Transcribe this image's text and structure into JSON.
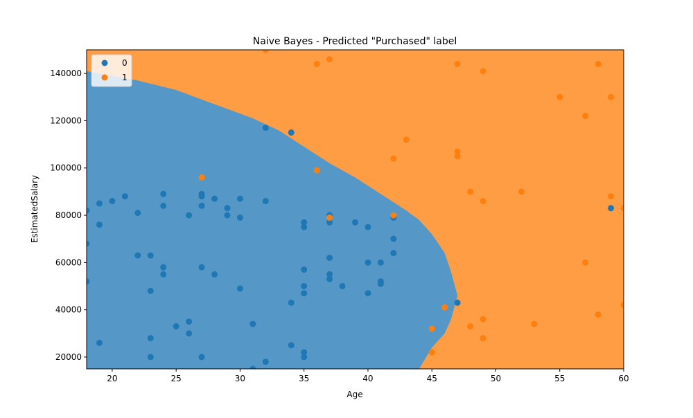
{
  "chart_data": {
    "type": "scatter",
    "title": "Naive Bayes - Predicted \"Purchased\" label",
    "xlabel": "Age",
    "ylabel": "EstimatedSalary",
    "xlim": [
      18,
      60
    ],
    "ylim": [
      15000,
      150000
    ],
    "xticks": [
      20,
      25,
      30,
      35,
      40,
      45,
      50,
      55,
      60
    ],
    "yticks": [
      20000,
      40000,
      60000,
      80000,
      100000,
      120000,
      140000
    ],
    "xtick_labels": [
      "20",
      "25",
      "30",
      "35",
      "40",
      "45",
      "50",
      "55",
      "60"
    ],
    "ytick_labels": [
      "20000",
      "40000",
      "60000",
      "80000",
      "100000",
      "120000",
      "140000"
    ],
    "grid": false,
    "legend": {
      "placement": "top-left",
      "entries": [
        "0",
        "1"
      ]
    },
    "colors": {
      "class_0": "#1f77b4",
      "class_1": "#ff7f0e",
      "region_0": "#5598c8",
      "region_1": "#ff9d45"
    },
    "decision_boundary": {
      "description_points_age_salary": [
        [
          18,
          141000
        ],
        [
          22,
          137000
        ],
        [
          25,
          133000
        ],
        [
          27,
          129000
        ],
        [
          29,
          125000
        ],
        [
          31,
          121000
        ],
        [
          33,
          116000
        ],
        [
          35,
          109000
        ],
        [
          37,
          102000
        ],
        [
          39,
          96000
        ],
        [
          41,
          89000
        ],
        [
          43,
          82000
        ],
        [
          44,
          78000
        ],
        [
          45,
          72000
        ],
        [
          46,
          64000
        ],
        [
          46.5,
          56000
        ],
        [
          47,
          46000
        ],
        [
          46.5,
          36000
        ],
        [
          46,
          30000
        ],
        [
          45,
          24000
        ],
        [
          44,
          15000
        ]
      ]
    },
    "series": [
      {
        "name": "0",
        "points": [
          [
            18,
            82000
          ],
          [
            18,
            68000
          ],
          [
            18,
            52000
          ],
          [
            19,
            85000
          ],
          [
            19,
            76000
          ],
          [
            19,
            26000
          ],
          [
            20,
            86000
          ],
          [
            21,
            88000
          ],
          [
            22,
            81000
          ],
          [
            22,
            63000
          ],
          [
            23,
            63000
          ],
          [
            23,
            48000
          ],
          [
            23,
            28000
          ],
          [
            23,
            20000
          ],
          [
            24,
            89000
          ],
          [
            24,
            84000
          ],
          [
            24,
            58000
          ],
          [
            24,
            55000
          ],
          [
            25,
            33000
          ],
          [
            26,
            80000
          ],
          [
            26,
            35000
          ],
          [
            26,
            30000
          ],
          [
            27,
            89000
          ],
          [
            27,
            88000
          ],
          [
            27,
            84000
          ],
          [
            27,
            58000
          ],
          [
            27,
            20000
          ],
          [
            28,
            87000
          ],
          [
            28,
            55000
          ],
          [
            29,
            83000
          ],
          [
            29,
            80000
          ],
          [
            30,
            87000
          ],
          [
            30,
            79000
          ],
          [
            30,
            49000
          ],
          [
            31,
            34000
          ],
          [
            31,
            15000
          ],
          [
            32,
            117000
          ],
          [
            32,
            86000
          ],
          [
            32,
            18000
          ],
          [
            34,
            115000
          ],
          [
            34,
            43000
          ],
          [
            34,
            25000
          ],
          [
            35,
            77000
          ],
          [
            35,
            75000
          ],
          [
            35,
            57000
          ],
          [
            35,
            50000
          ],
          [
            35,
            47000
          ],
          [
            35,
            22000
          ],
          [
            35,
            20000
          ],
          [
            37,
            80000
          ],
          [
            37,
            77000
          ],
          [
            37,
            62000
          ],
          [
            37,
            55000
          ],
          [
            37,
            53000
          ],
          [
            38,
            50000
          ],
          [
            39,
            77000
          ],
          [
            40,
            75000
          ],
          [
            40,
            60000
          ],
          [
            40,
            47000
          ],
          [
            41,
            60000
          ],
          [
            41,
            52000
          ],
          [
            41,
            51000
          ],
          [
            42,
            79000
          ],
          [
            42,
            70000
          ],
          [
            42,
            64000
          ],
          [
            47,
            43000
          ],
          [
            59,
            83000
          ]
        ]
      },
      {
        "name": "1",
        "points": [
          [
            27,
            96000
          ],
          [
            32,
            150000
          ],
          [
            36,
            144000
          ],
          [
            36,
            99000
          ],
          [
            37,
            146000
          ],
          [
            37,
            79000
          ],
          [
            42,
            104000
          ],
          [
            42,
            80000
          ],
          [
            43,
            112000
          ],
          [
            45,
            32000
          ],
          [
            45,
            22000
          ],
          [
            46,
            41000
          ],
          [
            47,
            144000
          ],
          [
            47,
            107000
          ],
          [
            47,
            105000
          ],
          [
            48,
            90000
          ],
          [
            48,
            33000
          ],
          [
            49,
            141000
          ],
          [
            49,
            86000
          ],
          [
            49,
            36000
          ],
          [
            49,
            28000
          ],
          [
            52,
            90000
          ],
          [
            53,
            34000
          ],
          [
            55,
            130000
          ],
          [
            57,
            122000
          ],
          [
            57,
            60000
          ],
          [
            58,
            144000
          ],
          [
            58,
            38000
          ],
          [
            59,
            130000
          ],
          [
            59,
            88000
          ],
          [
            60,
            83000
          ],
          [
            60,
            42000
          ]
        ]
      }
    ]
  }
}
